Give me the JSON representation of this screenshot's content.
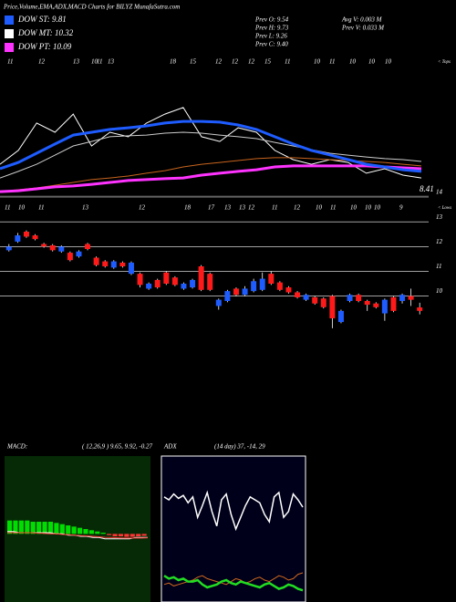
{
  "header": {
    "title": "Price,Volume,EMA,ADX,MACD Charts for BILYZ MunafaSutra.com",
    "dow": [
      {
        "label": "DOW ST: 9.81",
        "color": "#1e5cff"
      },
      {
        "label": "DOW MT: 10.32",
        "color": "#ffffff"
      },
      {
        "label": "DOW PT: 10.09",
        "color": "#ff33ff"
      }
    ],
    "prev": [
      "Prev  O: 9.54",
      "Prev  H: 9.73",
      "Prev  L: 9.26",
      "Prev  C: 9.40"
    ],
    "volume": [
      "Avg V: 0.003 M",
      "Prev  V: 0.033 M"
    ]
  },
  "chart_data": [
    {
      "type": "line",
      "ylim": [
        8,
        14
      ],
      "series": [
        {
          "color": "#ffffff",
          "values": [
            9.35,
            9.94,
            11.1,
            10.71,
            11.48,
            10.13,
            10.71,
            10.52,
            11.1,
            11.48,
            11.76,
            10.52,
            10.32,
            10.9,
            10.71,
            9.94,
            9.55,
            9.35,
            9.55,
            9.43,
            8.97,
            9.16,
            8.89,
            8.77
          ]
        },
        {
          "color": "#cccccc",
          "values": [
            8.77,
            9.05,
            9.35,
            9.74,
            10.13,
            10.32,
            10.52,
            10.56,
            10.59,
            10.67,
            10.71,
            10.67,
            10.59,
            10.52,
            10.44,
            10.28,
            10.13,
            9.97,
            9.82,
            9.74,
            9.66,
            9.59,
            9.55,
            9.47
          ]
        },
        {
          "color": "#c8641e",
          "values": [
            8.19,
            8.27,
            8.35,
            8.46,
            8.58,
            8.7,
            8.77,
            8.85,
            8.97,
            9.08,
            9.24,
            9.35,
            9.43,
            9.51,
            9.59,
            9.63,
            9.63,
            9.59,
            9.55,
            9.51,
            9.47,
            9.43,
            9.35,
            9.28
          ]
        },
        {
          "color": "#ff33ff",
          "values": [
            8.19,
            8.23,
            8.31,
            8.39,
            8.43,
            8.5,
            8.58,
            8.66,
            8.7,
            8.74,
            8.77,
            8.89,
            8.97,
            9.05,
            9.12,
            9.24,
            9.28,
            9.28,
            9.28,
            9.28,
            9.28,
            9.24,
            9.2,
            9.16
          ]
        },
        {
          "color": "#1e5cff",
          "values": [
            9.16,
            9.43,
            9.82,
            10.21,
            10.59,
            10.71,
            10.83,
            10.9,
            10.98,
            11.1,
            11.17,
            11.17,
            11.14,
            11.02,
            10.83,
            10.52,
            10.21,
            9.94,
            9.75,
            9.55,
            9.35,
            9.24,
            9.12,
            9.05
          ]
        }
      ]
    },
    {
      "type": "candlestick",
      "ylim": [
        8.4,
        14
      ],
      "yticks": [
        10,
        11,
        12,
        13,
        14
      ],
      "grid": true,
      "up_color": "#1e5cff",
      "down_color": "#ff1a1a",
      "open": [
        11.85,
        12.2,
        12.6,
        12.45,
        12.1,
        12.05,
        11.8,
        11.75,
        11.6,
        12.1,
        11.55,
        11.4,
        11.15,
        11.35,
        10.9,
        10.9,
        10.3,
        10.65,
        10.95,
        10.75,
        10.3,
        10.35,
        11.2,
        10.9,
        9.6,
        9.8,
        10.3,
        10.05,
        10.2,
        10.25,
        10.9,
        10.55,
        10.35,
        10.15,
        9.85,
        9.95,
        9.9,
        10.0,
        8.95,
        9.8,
        10.05,
        9.8,
        9.7,
        9.3,
        9.95,
        9.8,
        10.0,
        9.54
      ],
      "high": [
        12.1,
        12.55,
        12.65,
        12.5,
        12.15,
        12.1,
        12.05,
        11.8,
        11.85,
        12.15,
        11.6,
        11.45,
        11.45,
        11.4,
        11.4,
        10.95,
        10.55,
        10.7,
        11.0,
        10.8,
        10.55,
        10.7,
        11.25,
        10.95,
        9.9,
        10.25,
        10.35,
        10.4,
        10.7,
        10.95,
        11.0,
        10.6,
        10.4,
        10.2,
        10.1,
        10.0,
        9.95,
        10.05,
        9.45,
        10.1,
        10.1,
        9.85,
        9.75,
        9.9,
        10.0,
        10.1,
        10.3,
        9.73
      ],
      "low": [
        11.8,
        12.15,
        12.35,
        12.25,
        11.95,
        11.8,
        11.75,
        11.4,
        11.55,
        11.85,
        11.2,
        11.15,
        11.1,
        11.15,
        10.85,
        10.35,
        10.25,
        10.3,
        10.45,
        10.4,
        10.25,
        10.3,
        10.2,
        10.2,
        9.45,
        9.75,
        10.0,
        10.0,
        10.15,
        10.2,
        10.45,
        10.2,
        10.1,
        9.9,
        9.8,
        9.65,
        9.5,
        8.7,
        8.9,
        9.75,
        9.75,
        9.4,
        9.5,
        9.0,
        9.35,
        9.7,
        9.6,
        9.26
      ],
      "close": [
        12.0,
        12.45,
        12.4,
        12.3,
        12.0,
        11.85,
        12.0,
        11.45,
        11.8,
        11.9,
        11.25,
        11.2,
        11.4,
        11.2,
        11.35,
        10.45,
        10.5,
        10.35,
        10.5,
        10.45,
        10.5,
        10.65,
        10.25,
        10.25,
        9.85,
        10.2,
        10.05,
        10.3,
        10.6,
        10.7,
        10.5,
        10.25,
        10.15,
        9.95,
        10.05,
        9.7,
        9.55,
        9.1,
        9.4,
        10.05,
        9.8,
        9.65,
        9.55,
        9.85,
        9.4,
        10.05,
        9.85,
        9.4
      ],
      "top_labels": [
        11,
        12,
        13,
        10,
        11,
        13,
        18,
        15,
        12,
        12,
        12,
        15,
        11,
        10,
        11,
        10,
        10,
        10
      ],
      "tops_label": "< Tops",
      "bottom_labels": [
        11,
        10,
        11,
        13,
        12,
        18,
        17,
        13,
        13,
        12,
        11,
        12,
        10,
        11,
        10,
        10,
        10,
        9
      ],
      "lows_label": "< Lows",
      "last_value": 8.41
    },
    {
      "type": "bar",
      "title": "MACD:",
      "subtitle": "( 12,26,9 ) 9.65, 9.92, -0.27",
      "ylim": [
        -2.8,
        3.2
      ],
      "up_color": "#00dd00",
      "down_color": "#ff3333",
      "values": [
        0.55,
        0.55,
        0.55,
        0.55,
        0.5,
        0.5,
        0.5,
        0.5,
        0.45,
        0.4,
        0.35,
        0.3,
        0.25,
        0.2,
        0.15,
        0.1,
        0.05,
        -0.05,
        -0.1,
        -0.1,
        -0.12,
        -0.12,
        -0.1,
        -0.08
      ],
      "series": [
        {
          "color": "#ffffff",
          "values": [
            0.1,
            0.1,
            0.05,
            0.05,
            0.05,
            0.05,
            0.05,
            0.05,
            0,
            0,
            -0.05,
            -0.05,
            -0.1,
            -0.1,
            -0.15,
            -0.15,
            -0.2,
            -0.2,
            -0.2,
            -0.2,
            -0.2,
            -0.15,
            -0.15,
            -0.15
          ]
        },
        {
          "color": "#ff3333",
          "values": [
            0.05,
            0.05,
            0.05,
            0.05,
            0.05,
            0.03,
            0.02,
            0,
            0,
            -0.02,
            -0.03,
            -0.05,
            -0.07,
            -0.08,
            -0.1,
            -0.12,
            -0.14,
            -0.15,
            -0.16,
            -0.17,
            -0.17,
            -0.17,
            -0.17,
            -0.16
          ]
        }
      ]
    },
    {
      "type": "line",
      "title": "ADX",
      "subtitle": "(14  day) 37, -14, 29",
      "ylim": [
        0,
        100
      ],
      "series": [
        {
          "color": "#ffffff",
          "values": [
            72,
            70,
            74,
            71,
            73,
            68,
            72,
            58,
            66,
            75,
            62,
            52,
            70,
            74,
            60,
            50,
            58,
            66,
            72,
            70,
            68,
            60,
            55,
            72,
            75,
            58,
            62,
            74,
            70,
            65
          ]
        },
        {
          "color": "#d2691e",
          "values": [
            12,
            13,
            11,
            12,
            13,
            14,
            15,
            17,
            18,
            16,
            15,
            14,
            13,
            12,
            14,
            16,
            15,
            13,
            14,
            16,
            17,
            15,
            14,
            16,
            18,
            17,
            15,
            16,
            19,
            20
          ]
        },
        {
          "color": "#22dd22",
          "values": [
            18,
            16,
            17,
            15,
            16,
            14,
            14,
            15,
            12,
            10,
            11,
            12,
            14,
            15,
            13,
            12,
            14,
            13,
            12,
            11,
            10,
            12,
            13,
            11,
            9,
            10,
            12,
            11,
            9,
            8
          ]
        }
      ]
    }
  ]
}
